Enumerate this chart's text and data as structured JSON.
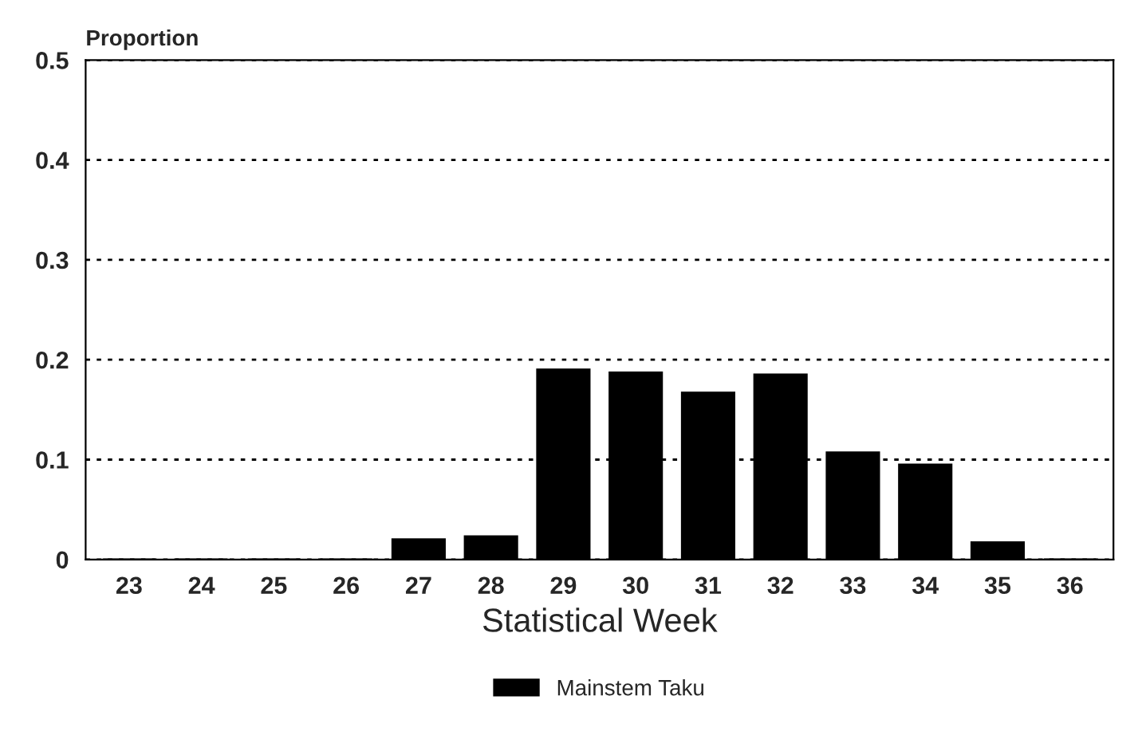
{
  "chart_data": {
    "type": "bar",
    "xlabel": "Statistical Week",
    "ylabel": "Proportion",
    "categories": [
      "23",
      "24",
      "25",
      "26",
      "27",
      "28",
      "29",
      "30",
      "31",
      "32",
      "33",
      "34",
      "35",
      "36"
    ],
    "series": [
      {
        "name": "Mainstem Taku",
        "color": "#000000",
        "values": [
          0,
          0,
          0,
          0,
          0.02,
          0.023,
          0.19,
          0.187,
          0.167,
          0.185,
          0.107,
          0.095,
          0.017,
          0
        ]
      }
    ],
    "ylim": [
      0,
      0.5
    ],
    "yticks": [
      0,
      0.1,
      0.2,
      0.3,
      0.4,
      0.5
    ],
    "grid": "y",
    "legend": "bottom"
  }
}
